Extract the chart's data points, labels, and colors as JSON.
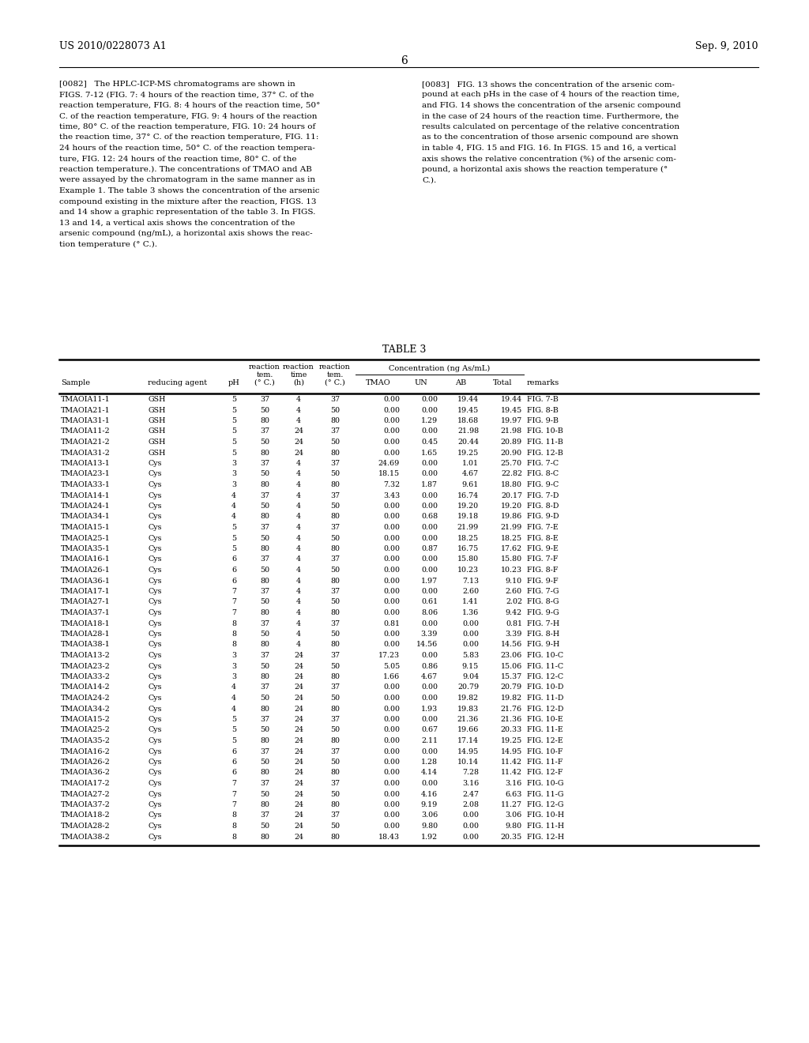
{
  "header_left": "US 2010/0228073 A1",
  "header_right": "Sep. 9, 2010",
  "page_number": "6",
  "para_0082_lines": [
    "[0082]   The HPLC-ICP-MS chromatograms are shown in",
    "FIGS. 7-12 (FIG. 7: 4 hours of the reaction time, 37° C. of the",
    "reaction temperature, FIG. 8: 4 hours of the reaction time, 50°",
    "C. of the reaction temperature, FIG. 9: 4 hours of the reaction",
    "time, 80° C. of the reaction temperature, FIG. 10: 24 hours of",
    "the reaction time, 37° C. of the reaction temperature, FIG. 11:",
    "24 hours of the reaction time, 50° C. of the reaction tempera-",
    "ture, FIG. 12: 24 hours of the reaction time, 80° C. of the",
    "reaction temperature.). The concentrations of TMAO and AB",
    "were assayed by the chromatogram in the same manner as in",
    "Example 1. The table 3 shows the concentration of the arsenic",
    "compound existing in the mixture after the reaction, FIGS. 13",
    "and 14 show a graphic representation of the table 3. In FIGS.",
    "13 and 14, a vertical axis shows the concentration of the",
    "arsenic compound (ng/mL), a horizontal axis shows the reac-",
    "tion temperature (° C.)."
  ],
  "para_0083_lines": [
    "[0083]   FIG. 13 shows the concentration of the arsenic com-",
    "pound at each pHs in the case of 4 hours of the reaction time,",
    "and FIG. 14 shows the concentration of the arsenic compound",
    "in the case of 24 hours of the reaction time. Furthermore, the",
    "results calculated on percentage of the relative concentration",
    "as to the concentration of those arsenic compound are shown",
    "in table 4, FIG. 15 and FIG. 16. In FIGS. 15 and 16, a vertical",
    "axis shows the relative concentration (%) of the arsenic com-",
    "pound, a horizontal axis shows the reaction temperature (°",
    "C.)."
  ],
  "table_title": "TABLE 3",
  "col_headers2": [
    "Sample",
    "reducing agent",
    "pH",
    "(° C.)",
    "(h)",
    "(° C.)",
    "TMAO",
    "UN",
    "AB",
    "Total",
    "remarks"
  ],
  "rows": [
    [
      "TMAOIA11-1",
      "GSH",
      "5",
      "37",
      "4",
      "37",
      "0.00",
      "0.00",
      "19.44",
      "19.44",
      "FIG. 7-B"
    ],
    [
      "TMAOIA21-1",
      "GSH",
      "5",
      "50",
      "4",
      "50",
      "0.00",
      "0.00",
      "19.45",
      "19.45",
      "FIG. 8-B"
    ],
    [
      "TMAOIA31-1",
      "GSH",
      "5",
      "80",
      "4",
      "80",
      "0.00",
      "1.29",
      "18.68",
      "19.97",
      "FIG. 9-B"
    ],
    [
      "TMAOIA11-2",
      "GSH",
      "5",
      "37",
      "24",
      "37",
      "0.00",
      "0.00",
      "21.98",
      "21.98",
      "FIG. 10-B"
    ],
    [
      "TMAOIA21-2",
      "GSH",
      "5",
      "50",
      "24",
      "50",
      "0.00",
      "0.45",
      "20.44",
      "20.89",
      "FIG. 11-B"
    ],
    [
      "TMAOIA31-2",
      "GSH",
      "5",
      "80",
      "24",
      "80",
      "0.00",
      "1.65",
      "19.25",
      "20.90",
      "FIG. 12-B"
    ],
    [
      "TMAOIA13-1",
      "Cys",
      "3",
      "37",
      "4",
      "37",
      "24.69",
      "0.00",
      "1.01",
      "25.70",
      "FIG. 7-C"
    ],
    [
      "TMAOIA23-1",
      "Cys",
      "3",
      "50",
      "4",
      "50",
      "18.15",
      "0.00",
      "4.67",
      "22.82",
      "FIG. 8-C"
    ],
    [
      "TMAOIA33-1",
      "Cys",
      "3",
      "80",
      "4",
      "80",
      "7.32",
      "1.87",
      "9.61",
      "18.80",
      "FIG. 9-C"
    ],
    [
      "TMAOIA14-1",
      "Cys",
      "4",
      "37",
      "4",
      "37",
      "3.43",
      "0.00",
      "16.74",
      "20.17",
      "FIG. 7-D"
    ],
    [
      "TMAOIA24-1",
      "Cys",
      "4",
      "50",
      "4",
      "50",
      "0.00",
      "0.00",
      "19.20",
      "19.20",
      "FIG. 8-D"
    ],
    [
      "TMAOIA34-1",
      "Cys",
      "4",
      "80",
      "4",
      "80",
      "0.00",
      "0.68",
      "19.18",
      "19.86",
      "FIG. 9-D"
    ],
    [
      "TMAOIA15-1",
      "Cys",
      "5",
      "37",
      "4",
      "37",
      "0.00",
      "0.00",
      "21.99",
      "21.99",
      "FIG. 7-E"
    ],
    [
      "TMAOIA25-1",
      "Cys",
      "5",
      "50",
      "4",
      "50",
      "0.00",
      "0.00",
      "18.25",
      "18.25",
      "FIG. 8-E"
    ],
    [
      "TMAOIA35-1",
      "Cys",
      "5",
      "80",
      "4",
      "80",
      "0.00",
      "0.87",
      "16.75",
      "17.62",
      "FIG. 9-E"
    ],
    [
      "TMAOIA16-1",
      "Cys",
      "6",
      "37",
      "4",
      "37",
      "0.00",
      "0.00",
      "15.80",
      "15.80",
      "FIG. 7-F"
    ],
    [
      "TMAOIA26-1",
      "Cys",
      "6",
      "50",
      "4",
      "50",
      "0.00",
      "0.00",
      "10.23",
      "10.23",
      "FIG. 8-F"
    ],
    [
      "TMAOIA36-1",
      "Cys",
      "6",
      "80",
      "4",
      "80",
      "0.00",
      "1.97",
      "7.13",
      "9.10",
      "FIG. 9-F"
    ],
    [
      "TMAOIA17-1",
      "Cys",
      "7",
      "37",
      "4",
      "37",
      "0.00",
      "0.00",
      "2.60",
      "2.60",
      "FIG. 7-G"
    ],
    [
      "TMAOIA27-1",
      "Cys",
      "7",
      "50",
      "4",
      "50",
      "0.00",
      "0.61",
      "1.41",
      "2.02",
      "FIG. 8-G"
    ],
    [
      "TMAOIA37-1",
      "Cys",
      "7",
      "80",
      "4",
      "80",
      "0.00",
      "8.06",
      "1.36",
      "9.42",
      "FIG. 9-G"
    ],
    [
      "TMAOIA18-1",
      "Cys",
      "8",
      "37",
      "4",
      "37",
      "0.81",
      "0.00",
      "0.00",
      "0.81",
      "FIG. 7-H"
    ],
    [
      "TMAOIA28-1",
      "Cys",
      "8",
      "50",
      "4",
      "50",
      "0.00",
      "3.39",
      "0.00",
      "3.39",
      "FIG. 8-H"
    ],
    [
      "TMAOIA38-1",
      "Cys",
      "8",
      "80",
      "4",
      "80",
      "0.00",
      "14.56",
      "0.00",
      "14.56",
      "FIG. 9-H"
    ],
    [
      "TMAOIA13-2",
      "Cys",
      "3",
      "37",
      "24",
      "37",
      "17.23",
      "0.00",
      "5.83",
      "23.06",
      "FIG. 10-C"
    ],
    [
      "TMAOIA23-2",
      "Cys",
      "3",
      "50",
      "24",
      "50",
      "5.05",
      "0.86",
      "9.15",
      "15.06",
      "FIG. 11-C"
    ],
    [
      "TMAOIA33-2",
      "Cys",
      "3",
      "80",
      "24",
      "80",
      "1.66",
      "4.67",
      "9.04",
      "15.37",
      "FIG. 12-C"
    ],
    [
      "TMAOIA14-2",
      "Cys",
      "4",
      "37",
      "24",
      "37",
      "0.00",
      "0.00",
      "20.79",
      "20.79",
      "FIG. 10-D"
    ],
    [
      "TMAOIA24-2",
      "Cys",
      "4",
      "50",
      "24",
      "50",
      "0.00",
      "0.00",
      "19.82",
      "19.82",
      "FIG. 11-D"
    ],
    [
      "TMAOIA34-2",
      "Cys",
      "4",
      "80",
      "24",
      "80",
      "0.00",
      "1.93",
      "19.83",
      "21.76",
      "FIG. 12-D"
    ],
    [
      "TMAOIA15-2",
      "Cys",
      "5",
      "37",
      "24",
      "37",
      "0.00",
      "0.00",
      "21.36",
      "21.36",
      "FIG. 10-E"
    ],
    [
      "TMAOIA25-2",
      "Cys",
      "5",
      "50",
      "24",
      "50",
      "0.00",
      "0.67",
      "19.66",
      "20.33",
      "FIG. 11-E"
    ],
    [
      "TMAOIA35-2",
      "Cys",
      "5",
      "80",
      "24",
      "80",
      "0.00",
      "2.11",
      "17.14",
      "19.25",
      "FIG. 12-E"
    ],
    [
      "TMAOIA16-2",
      "Cys",
      "6",
      "37",
      "24",
      "37",
      "0.00",
      "0.00",
      "14.95",
      "14.95",
      "FIG. 10-F"
    ],
    [
      "TMAOIA26-2",
      "Cys",
      "6",
      "50",
      "24",
      "50",
      "0.00",
      "1.28",
      "10.14",
      "11.42",
      "FIG. 11-F"
    ],
    [
      "TMAOIA36-2",
      "Cys",
      "6",
      "80",
      "24",
      "80",
      "0.00",
      "4.14",
      "7.28",
      "11.42",
      "FIG. 12-F"
    ],
    [
      "TMAOIA17-2",
      "Cys",
      "7",
      "37",
      "24",
      "37",
      "0.00",
      "0.00",
      "3.16",
      "3.16",
      "FIG. 10-G"
    ],
    [
      "TMAOIA27-2",
      "Cys",
      "7",
      "50",
      "24",
      "50",
      "0.00",
      "4.16",
      "2.47",
      "6.63",
      "FIG. 11-G"
    ],
    [
      "TMAOIA37-2",
      "Cys",
      "7",
      "80",
      "24",
      "80",
      "0.00",
      "9.19",
      "2.08",
      "11.27",
      "FIG. 12-G"
    ],
    [
      "TMAOIA18-2",
      "Cys",
      "8",
      "37",
      "24",
      "37",
      "0.00",
      "3.06",
      "0.00",
      "3.06",
      "FIG. 10-H"
    ],
    [
      "TMAOIA28-2",
      "Cys",
      "8",
      "50",
      "24",
      "50",
      "0.00",
      "9.80",
      "0.00",
      "9.80",
      "FIG. 11-H"
    ],
    [
      "TMAOIA38-2",
      "Cys",
      "8",
      "80",
      "24",
      "80",
      "18.43",
      "1.92",
      "0.00",
      "20.35",
      "FIG. 12-H"
    ]
  ]
}
